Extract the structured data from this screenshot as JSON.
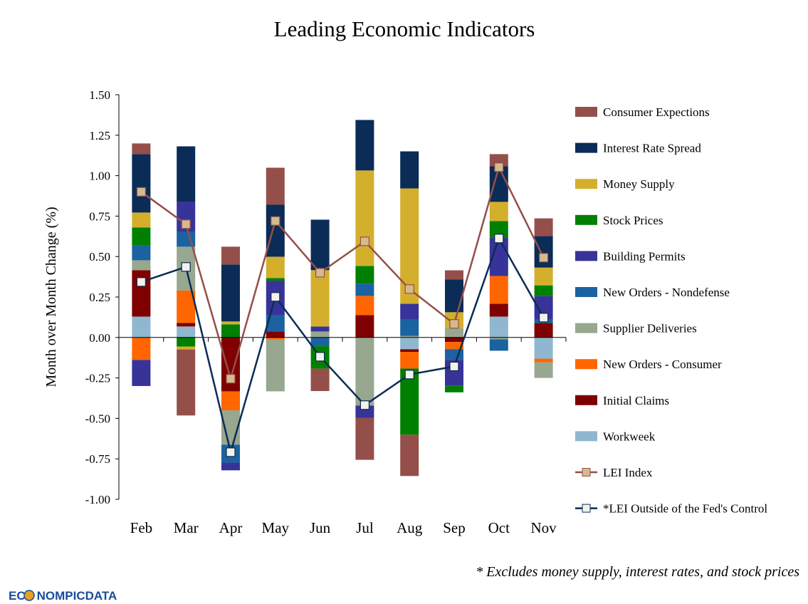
{
  "chart_data": {
    "type": "bar",
    "subtype": "stacked-bar-with-lines",
    "title": "Leading Economic Indicators",
    "ylabel": "Month over Month Change (%)",
    "xlabel": "",
    "ylim": [
      -1.0,
      1.5
    ],
    "yticks": [
      "1.50",
      "1.25",
      "1.00",
      "0.75",
      "0.50",
      "0.25",
      "0.00",
      "-0.25",
      "-0.50",
      "-0.75",
      "-1.00"
    ],
    "ytick_values": [
      1.5,
      1.25,
      1.0,
      0.75,
      0.5,
      0.25,
      0.0,
      -0.25,
      -0.5,
      -0.75,
      -1.0
    ],
    "grid": false,
    "legend_position": "right",
    "categories": [
      "Feb",
      "Mar",
      "Apr",
      "May",
      "Jun",
      "Jul",
      "Aug",
      "Sep",
      "Oct",
      "Nov"
    ],
    "series": [
      {
        "name": "Workweek",
        "type": "bar",
        "color": "#8FB7D0",
        "values": [
          0.129,
          0.068,
          0,
          0,
          0,
          0,
          -0.073,
          0,
          0.129,
          -0.131
        ]
      },
      {
        "name": "Initial Claims",
        "type": "bar",
        "color": "#7F0000",
        "values": [
          0.286,
          0.022,
          -0.333,
          0.037,
          0,
          0.138,
          -0.016,
          -0.028,
          0.079,
          0.089
        ]
      },
      {
        "name": "New Orders - Consumer",
        "type": "bar",
        "color": "#FF6600",
        "values": [
          -0.139,
          0.2,
          -0.117,
          -0.012,
          0,
          0.119,
          -0.103,
          -0.044,
          0.172,
          -0.022
        ]
      },
      {
        "name": "Supplier Deliveries",
        "type": "bar",
        "color": "#98A78F",
        "values": [
          0.062,
          0.271,
          -0.213,
          -0.321,
          0.037,
          -0.421,
          0.01,
          0.059,
          -0.012,
          -0.097
        ]
      },
      {
        "name": "New Orders - Nondefense",
        "type": "bar",
        "color": "#1A63A0",
        "values": [
          0.094,
          0.092,
          -0.11,
          0.101,
          -0.054,
          0.076,
          0.101,
          -0.066,
          -0.07,
          0.022
        ]
      },
      {
        "name": "Building Permits",
        "type": "bar",
        "color": "#383399",
        "values": [
          -0.161,
          0.185,
          -0.048,
          0.213,
          0.031,
          -0.075,
          0.097,
          -0.161,
          0.238,
          0.145
        ]
      },
      {
        "name": "Stock Prices",
        "type": "bar",
        "color": "#008000",
        "values": [
          0.109,
          -0.056,
          0.081,
          0.016,
          -0.138,
          0.109,
          -0.409,
          -0.04,
          0.101,
          0.066
        ]
      },
      {
        "name": "Money Supply",
        "type": "bar",
        "color": "#D4AF2C",
        "values": [
          0.092,
          -0.018,
          0.018,
          0.132,
          0.348,
          0.59,
          0.713,
          0.097,
          0.119,
          0.11
        ]
      },
      {
        "name": "Interest Rate Spread",
        "type": "bar",
        "color": "#0A2C56",
        "values": [
          0.361,
          0.343,
          0.352,
          0.321,
          0.312,
          0.312,
          0.229,
          0.202,
          0.22,
          0.194
        ]
      },
      {
        "name": "Consumer Expections",
        "type": "bar",
        "color": "#944F4A",
        "values": [
          0.066,
          -0.408,
          0.11,
          0.229,
          -0.139,
          -0.26,
          -0.255,
          0.057,
          0.075,
          0.11
        ]
      },
      {
        "name": "LEI Index",
        "type": "line",
        "color": "#944F4A",
        "marker_fill": "#D5BA8E",
        "values": [
          0.9,
          0.7,
          -0.255,
          0.72,
          0.4,
          0.594,
          0.299,
          0.084,
          1.052,
          0.493
        ]
      },
      {
        "name": "*LEI Outside of the Fed's Control",
        "type": "line",
        "color": "#0A2C56",
        "marker_fill": "#F4F2E8",
        "values": [
          0.343,
          0.436,
          -0.709,
          0.251,
          -0.119,
          -0.418,
          -0.229,
          -0.179,
          0.612,
          0.123
        ]
      }
    ],
    "legend_order": [
      "Consumer Expections",
      "Interest Rate Spread",
      "Money Supply",
      "Stock Prices",
      "Building Permits",
      "New Orders - Nondefense",
      "Supplier Deliveries",
      "New Orders - Consumer",
      "Initial Claims",
      "Workweek",
      "LEI Index",
      "*LEI Outside of the Fed's Control"
    ],
    "footnote": "* Excludes money supply, interest rates, and stock prices"
  },
  "logo": {
    "text_pre": "EC",
    "text_post": "NOMPICDATA",
    "colors": {
      "text": "#1A4C9A",
      "accent": "#E8A020"
    }
  }
}
